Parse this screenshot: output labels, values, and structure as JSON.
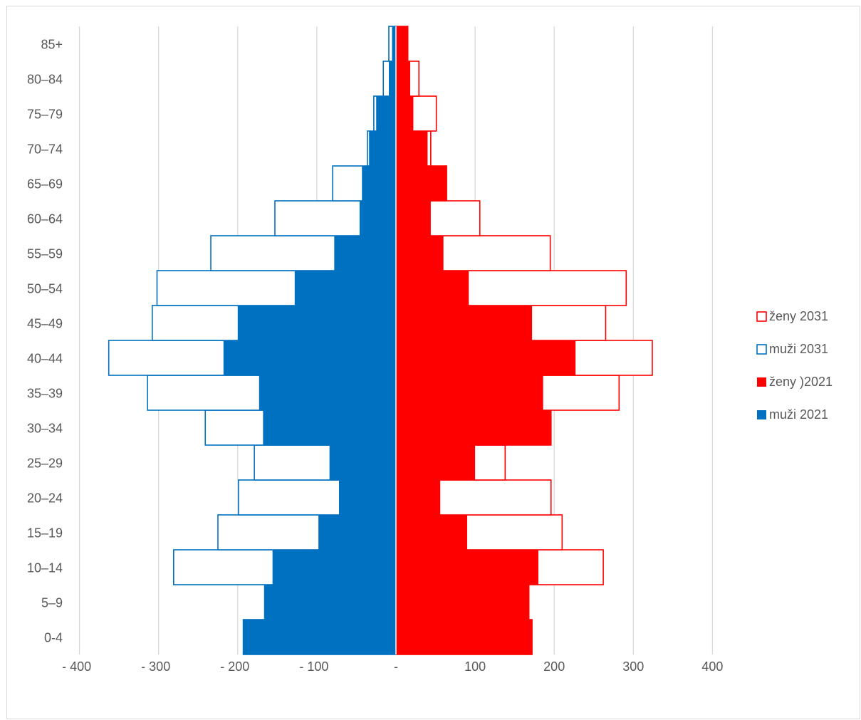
{
  "chart_data": {
    "type": "bar",
    "orientation": "horizontal",
    "subtype": "population-pyramid",
    "categories": [
      "0-4",
      "5–9",
      "10–14",
      "15–19",
      "20–24",
      "25–29",
      "30–34",
      "35–39",
      "40–44",
      "45–49",
      "50–54",
      "55–59",
      "60–64",
      "65–69",
      "70–74",
      "75–79",
      "80–84",
      "85+"
    ],
    "x_tick_labels": [
      "- 400",
      "- 300",
      "- 200",
      "- 100",
      "-",
      "100",
      "200",
      "300",
      "400"
    ],
    "x_ticks": [
      -400,
      -300,
      -200,
      -100,
      0,
      100,
      200,
      300,
      400
    ],
    "xlim": [
      -400,
      400
    ],
    "grid": "vertical",
    "legend_position": "right",
    "series": [
      {
        "name": "ženy 2031",
        "style": "outline",
        "color": "#FF0000",
        "values": [
          172,
          168,
          262,
          210,
          196,
          138,
          196,
          282,
          324,
          265,
          291,
          195,
          106,
          64,
          44,
          51,
          29,
          15
        ]
      },
      {
        "name": "muži 2031",
        "style": "outline",
        "color": "#0070C0",
        "values": [
          -193,
          -166,
          -281,
          -225,
          -199,
          -179,
          -241,
          -314,
          -363,
          -308,
          -302,
          -234,
          -153,
          -80,
          -36,
          -28,
          -16,
          -9
        ]
      },
      {
        "name": "ženy )2021",
        "style": "filled",
        "color": "#FF0000",
        "values": [
          172,
          168,
          180,
          90,
          56,
          100,
          196,
          186,
          227,
          172,
          92,
          60,
          44,
          64,
          40,
          22,
          18,
          15
        ]
      },
      {
        "name": "muži 2021",
        "style": "filled",
        "color": "#0070C0",
        "values": [
          -193,
          -166,
          -156,
          -98,
          -72,
          -84,
          -168,
          -173,
          -218,
          -200,
          -128,
          -78,
          -46,
          -43,
          -34,
          -25,
          -9,
          -5
        ]
      }
    ]
  }
}
